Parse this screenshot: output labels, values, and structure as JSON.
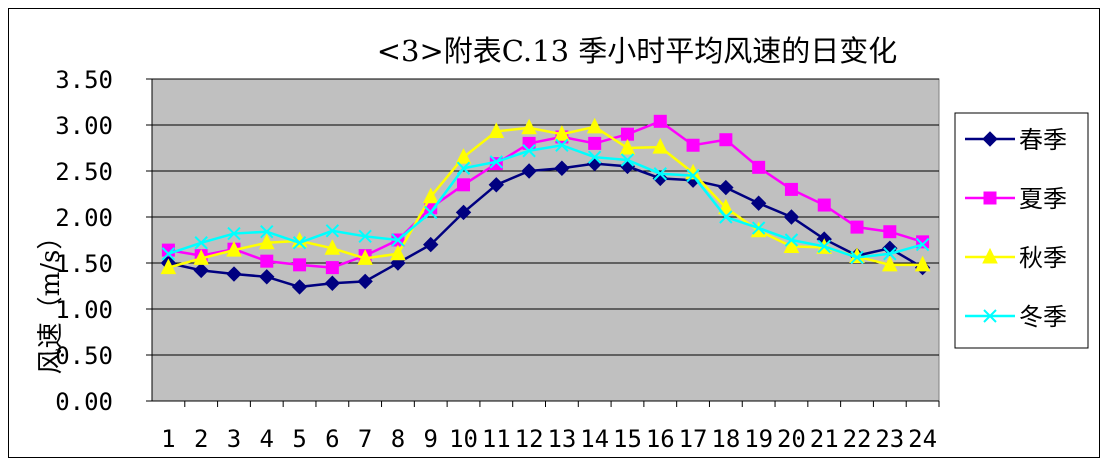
{
  "chart_data": {
    "type": "line",
    "title": "<3>附表C.13 季小时平均风速的日变化",
    "ylabel": "风速（m/s）",
    "xlabel": "",
    "categories": [
      "1",
      "2",
      "3",
      "4",
      "5",
      "6",
      "7",
      "8",
      "9",
      "10",
      "11",
      "12",
      "13",
      "14",
      "15",
      "16",
      "17",
      "18",
      "19",
      "20",
      "21",
      "22",
      "23",
      "24"
    ],
    "ylim": [
      0,
      3.5
    ],
    "yticks": [
      "0.00",
      "0.50",
      "1.00",
      "1.50",
      "2.00",
      "2.50",
      "3.00",
      "3.50"
    ],
    "grid": true,
    "legend_position": "right",
    "plot_background": "#c0c0c0",
    "series": [
      {
        "name": "春季",
        "color": "#000080",
        "marker": "diamond",
        "values": [
          1.5,
          1.42,
          1.38,
          1.35,
          1.24,
          1.28,
          1.3,
          1.5,
          1.7,
          2.05,
          2.35,
          2.5,
          2.53,
          2.58,
          2.55,
          2.42,
          2.4,
          2.32,
          2.15,
          2.0,
          1.76,
          1.58,
          1.66,
          1.45
        ]
      },
      {
        "name": "夏季",
        "color": "#ff00ff",
        "marker": "square",
        "values": [
          1.64,
          1.58,
          1.65,
          1.52,
          1.48,
          1.45,
          1.58,
          1.75,
          2.1,
          2.35,
          2.58,
          2.8,
          2.87,
          2.8,
          2.9,
          3.04,
          2.78,
          2.84,
          2.54,
          2.3,
          2.13,
          1.89,
          1.84,
          1.73
        ]
      },
      {
        "name": "秋季",
        "color": "#ffff00",
        "marker": "triangle",
        "values": [
          1.45,
          1.55,
          1.64,
          1.72,
          1.74,
          1.66,
          1.55,
          1.6,
          2.22,
          2.65,
          2.93,
          2.97,
          2.9,
          2.98,
          2.75,
          2.76,
          2.48,
          2.1,
          1.85,
          1.68,
          1.67,
          1.57,
          1.48,
          1.48
        ]
      },
      {
        "name": "冬季",
        "color": "#00ffff",
        "marker": "x",
        "values": [
          1.6,
          1.72,
          1.82,
          1.84,
          1.72,
          1.85,
          1.79,
          1.75,
          2.05,
          2.53,
          2.6,
          2.72,
          2.78,
          2.65,
          2.62,
          2.47,
          2.45,
          2.0,
          1.88,
          1.75,
          1.68,
          1.56,
          1.6,
          1.7
        ]
      }
    ]
  }
}
